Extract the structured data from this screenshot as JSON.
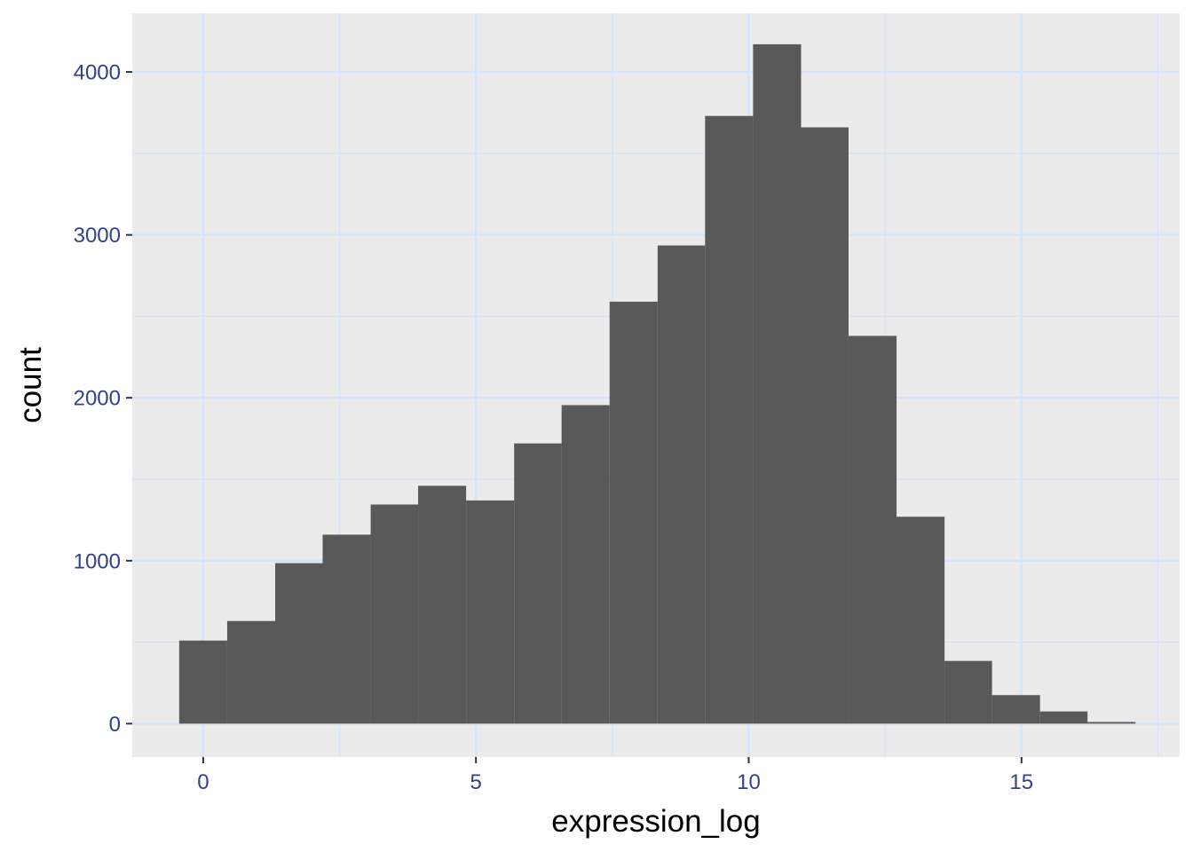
{
  "chart_data": {
    "type": "bar",
    "subtype": "histogram",
    "title": "",
    "xlabel": "expression_log",
    "ylabel": "count",
    "xlim": [
      -1.3,
      17.9
    ],
    "ylim": [
      -205,
      4360
    ],
    "x_ticks": [
      0,
      5,
      10,
      15
    ],
    "y_ticks": [
      0,
      1000,
      2000,
      3000,
      4000
    ],
    "x_tick_labels": [
      "0",
      "5",
      "10",
      "15"
    ],
    "y_tick_labels": [
      "0",
      "1000",
      "2000",
      "3000",
      "4000"
    ],
    "grid": true,
    "bins": [
      {
        "x0": -0.44,
        "x1": 0.44,
        "count": 510
      },
      {
        "x0": 0.44,
        "x1": 1.32,
        "count": 630
      },
      {
        "x0": 1.32,
        "x1": 2.19,
        "count": 985
      },
      {
        "x0": 2.19,
        "x1": 3.07,
        "count": 1160
      },
      {
        "x0": 3.07,
        "x1": 3.94,
        "count": 1345
      },
      {
        "x0": 3.94,
        "x1": 4.82,
        "count": 1460
      },
      {
        "x0": 4.82,
        "x1": 5.7,
        "count": 1370
      },
      {
        "x0": 5.7,
        "x1": 6.57,
        "count": 1720
      },
      {
        "x0": 6.57,
        "x1": 7.45,
        "count": 1955
      },
      {
        "x0": 7.45,
        "x1": 8.33,
        "count": 2590
      },
      {
        "x0": 8.33,
        "x1": 9.2,
        "count": 2935
      },
      {
        "x0": 9.2,
        "x1": 10.08,
        "count": 3730
      },
      {
        "x0": 10.08,
        "x1": 10.96,
        "count": 4170
      },
      {
        "x0": 10.96,
        "x1": 11.83,
        "count": 3660
      },
      {
        "x0": 11.83,
        "x1": 12.71,
        "count": 2380
      },
      {
        "x0": 12.71,
        "x1": 13.59,
        "count": 1270
      },
      {
        "x0": 13.59,
        "x1": 14.46,
        "count": 385
      },
      {
        "x0": 14.46,
        "x1": 15.34,
        "count": 175
      },
      {
        "x0": 15.34,
        "x1": 16.21,
        "count": 75
      },
      {
        "x0": 16.21,
        "x1": 17.09,
        "count": 10
      }
    ],
    "colors": {
      "panel_background": "#ebebeb",
      "grid": "#d5e4fb",
      "bar_fill": "#595959",
      "tick_label": "#33418a",
      "tick_mark": "#333333",
      "axis_title": "#000000"
    }
  }
}
